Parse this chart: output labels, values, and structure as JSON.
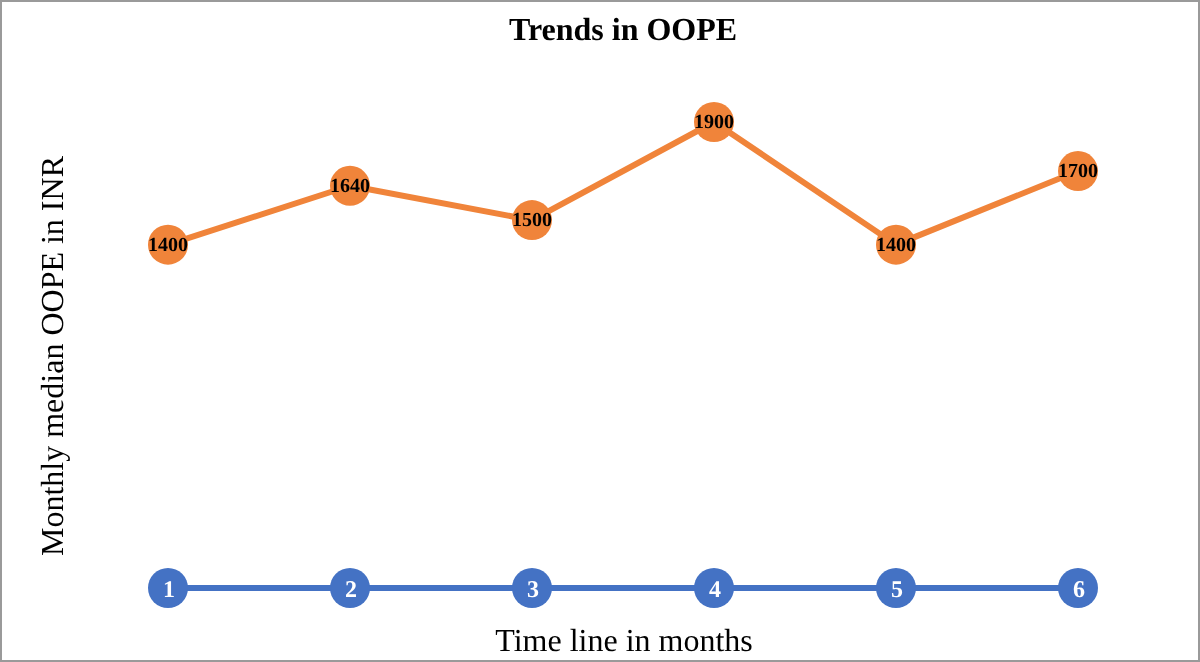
{
  "chart_data": {
    "type": "line",
    "title": "Trends in OOPE",
    "xlabel": "Time line in months",
    "ylabel": "Monthly median OOPE in INR",
    "categories": [
      "1",
      "2",
      "3",
      "4",
      "5",
      "6"
    ],
    "marker": "circle",
    "grid": false,
    "legend": false,
    "series": [
      {
        "color": "#f0843a",
        "values": [
          1400,
          1640,
          1500,
          1900,
          1400,
          1700
        ],
        "value_labels": [
          "1400",
          "1640",
          "1500",
          "1900",
          "1400",
          "1700"
        ]
      },
      {
        "color": "#4472c4",
        "values": [
          0,
          0,
          0,
          0,
          0,
          0
        ]
      }
    ]
  }
}
